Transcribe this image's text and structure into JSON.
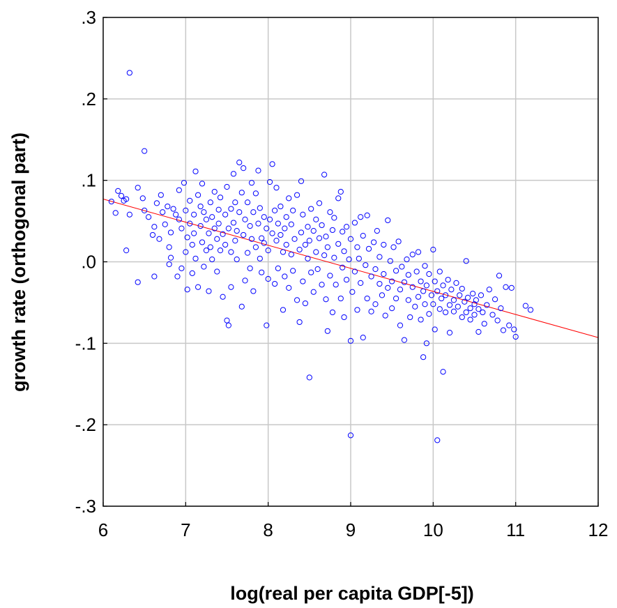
{
  "chart_data": {
    "type": "scatter",
    "xlabel": "log(real per capita GDP[-5])",
    "ylabel": "growth rate (orthogonal part)",
    "xlim": [
      6,
      12
    ],
    "ylim": [
      -0.3,
      0.3
    ],
    "x_ticks": [
      6,
      7,
      8,
      9,
      10,
      11,
      12
    ],
    "x_tick_labels": [
      "6",
      "7",
      "8",
      "9",
      "10",
      "11",
      "12"
    ],
    "y_ticks": [
      0.3,
      0.2,
      0.1,
      0.0,
      -0.1,
      -0.2,
      -0.3
    ],
    "y_tick_labels": [
      ".3",
      ".2",
      ".1",
      ".0",
      "-.1",
      "-.2",
      "-.3"
    ],
    "grid": true,
    "colors": {
      "points": "#0000ff",
      "fit_line": "#ff0000",
      "grid": "#c8c8c8",
      "frame": "#000000"
    },
    "fit_line": {
      "x": [
        6.0,
        12.0
      ],
      "y": [
        0.077,
        -0.093
      ]
    },
    "points": [
      [
        6.1,
        0.074
      ],
      [
        6.15,
        0.06
      ],
      [
        6.18,
        0.087
      ],
      [
        6.22,
        0.081
      ],
      [
        6.25,
        0.075
      ],
      [
        6.28,
        0.077
      ],
      [
        6.28,
        0.014
      ],
      [
        6.32,
        0.232
      ],
      [
        6.32,
        0.058
      ],
      [
        6.42,
        0.091
      ],
      [
        6.42,
        -0.025
      ],
      [
        6.48,
        0.078
      ],
      [
        6.5,
        0.136
      ],
      [
        6.5,
        0.063
      ],
      [
        6.55,
        0.055
      ],
      [
        6.6,
        0.033
      ],
      [
        6.62,
        -0.018
      ],
      [
        6.62,
        0.043
      ],
      [
        6.65,
        0.072
      ],
      [
        6.68,
        0.028
      ],
      [
        6.7,
        0.082
      ],
      [
        6.72,
        0.061
      ],
      [
        6.75,
        0.046
      ],
      [
        6.78,
        0.068
      ],
      [
        6.8,
        -0.003
      ],
      [
        6.8,
        0.018
      ],
      [
        6.82,
        0.036
      ],
      [
        6.82,
        0.005
      ],
      [
        6.85,
        0.065
      ],
      [
        6.88,
        0.058
      ],
      [
        6.9,
        -0.018
      ],
      [
        6.92,
        0.088
      ],
      [
        6.92,
        0.052
      ],
      [
        6.95,
        0.041
      ],
      [
        6.95,
        -0.008
      ],
      [
        6.98,
        0.097
      ],
      [
        7.0,
        0.063
      ],
      [
        7.0,
        0.012
      ],
      [
        7.02,
        -0.034
      ],
      [
        7.02,
        0.03
      ],
      [
        7.05,
        0.075
      ],
      [
        7.05,
        0.047
      ],
      [
        7.08,
        0.021
      ],
      [
        7.08,
        -0.014
      ],
      [
        7.1,
        0.058
      ],
      [
        7.1,
        0.035
      ],
      [
        7.12,
        0.111
      ],
      [
        7.12,
        0.004
      ],
      [
        7.15,
        0.082
      ],
      [
        7.15,
        -0.031
      ],
      [
        7.18,
        0.068
      ],
      [
        7.18,
        0.044
      ],
      [
        7.2,
        0.096
      ],
      [
        7.2,
        0.024
      ],
      [
        7.22,
        -0.006
      ],
      [
        7.22,
        0.061
      ],
      [
        7.25,
        0.052
      ],
      [
        7.25,
        0.014
      ],
      [
        7.28,
        0.035
      ],
      [
        7.28,
        -0.036
      ],
      [
        7.3,
        0.073
      ],
      [
        7.3,
        0.018
      ],
      [
        7.32,
        0.055
      ],
      [
        7.32,
        0.003
      ],
      [
        7.35,
        0.086
      ],
      [
        7.35,
        0.041
      ],
      [
        7.38,
        0.028
      ],
      [
        7.38,
        -0.012
      ],
      [
        7.4,
        0.064
      ],
      [
        7.4,
        0.047
      ],
      [
        7.42,
        0.014
      ],
      [
        7.42,
        0.079
      ],
      [
        7.45,
        0.034
      ],
      [
        7.45,
        -0.043
      ],
      [
        7.48,
        0.058
      ],
      [
        7.48,
        0.021
      ],
      [
        7.5,
        -0.072
      ],
      [
        7.5,
        0.092
      ],
      [
        7.52,
        0.041
      ],
      [
        7.52,
        -0.078
      ],
      [
        7.55,
        0.065
      ],
      [
        7.55,
        0.012
      ],
      [
        7.55,
        -0.031
      ],
      [
        7.58,
        0.108
      ],
      [
        7.58,
        0.048
      ],
      [
        7.6,
        0.026
      ],
      [
        7.6,
        0.073
      ],
      [
        7.62,
        0.003
      ],
      [
        7.62,
        0.038
      ],
      [
        7.65,
        0.122
      ],
      [
        7.65,
        0.061
      ],
      [
        7.68,
        0.085
      ],
      [
        7.68,
        -0.055
      ],
      [
        7.7,
        0.115
      ],
      [
        7.7,
        0.033
      ],
      [
        7.72,
        -0.023
      ],
      [
        7.72,
        0.052
      ],
      [
        7.75,
        0.073
      ],
      [
        7.75,
        0.011
      ],
      [
        7.78,
        0.044
      ],
      [
        7.78,
        -0.008
      ],
      [
        7.8,
        0.097
      ],
      [
        7.8,
        0.028
      ],
      [
        7.82,
        0.061
      ],
      [
        7.82,
        -0.036
      ],
      [
        7.85,
        0.084
      ],
      [
        7.85,
        0.018
      ],
      [
        7.88,
        0.112
      ],
      [
        7.88,
        0.047
      ],
      [
        7.9,
        0.004
      ],
      [
        7.9,
        0.066
      ],
      [
        7.92,
        0.029
      ],
      [
        7.92,
        -0.013
      ],
      [
        7.95,
        0.055
      ],
      [
        7.95,
        0.023
      ],
      [
        7.98,
        -0.078
      ],
      [
        7.98,
        0.041
      ],
      [
        8.0,
        0.014
      ],
      [
        8.0,
        -0.021
      ],
      [
        8.02,
        0.098
      ],
      [
        8.02,
        0.052
      ],
      [
        8.05,
        0.12
      ],
      [
        8.05,
        0.035
      ],
      [
        8.08,
        -0.027
      ],
      [
        8.08,
        0.063
      ],
      [
        8.1,
        0.026
      ],
      [
        8.1,
        0.091
      ],
      [
        8.12,
        -0.008
      ],
      [
        8.12,
        0.047
      ],
      [
        8.15,
        0.033
      ],
      [
        8.15,
        0.068
      ],
      [
        8.18,
        -0.059
      ],
      [
        8.18,
        0.012
      ],
      [
        8.2,
        0.041
      ],
      [
        8.2,
        -0.018
      ],
      [
        8.22,
        0.055
      ],
      [
        8.22,
        0.021
      ],
      [
        8.25,
        0.078
      ],
      [
        8.25,
        -0.032
      ],
      [
        8.28,
        0.009
      ],
      [
        8.28,
        0.046
      ],
      [
        8.3,
        0.063
      ],
      [
        8.3,
        -0.011
      ],
      [
        8.32,
        0.028
      ],
      [
        8.35,
        0.082
      ],
      [
        8.35,
        -0.047
      ],
      [
        8.38,
        0.015
      ],
      [
        8.38,
        -0.074
      ],
      [
        8.4,
        0.099
      ],
      [
        8.4,
        0.036
      ],
      [
        8.42,
        -0.024
      ],
      [
        8.42,
        0.058
      ],
      [
        8.45,
        0.021
      ],
      [
        8.45,
        -0.051
      ],
      [
        8.48,
        0.004
      ],
      [
        8.48,
        0.043
      ],
      [
        8.5,
        -0.142
      ],
      [
        8.5,
        0.026
      ],
      [
        8.52,
        0.065
      ],
      [
        8.52,
        -0.013
      ],
      [
        8.55,
        0.038
      ],
      [
        8.55,
        -0.037
      ],
      [
        8.58,
        0.012
      ],
      [
        8.58,
        0.052
      ],
      [
        8.6,
        -0.009
      ],
      [
        8.62,
        0.072
      ],
      [
        8.62,
        0.029
      ],
      [
        8.65,
        -0.028
      ],
      [
        8.65,
        0.045
      ],
      [
        8.68,
        0.107
      ],
      [
        8.68,
        0.008
      ],
      [
        8.7,
        -0.046
      ],
      [
        8.7,
        0.031
      ],
      [
        8.72,
        0.018
      ],
      [
        8.72,
        -0.085
      ],
      [
        8.75,
        0.061
      ],
      [
        8.75,
        -0.017
      ],
      [
        8.78,
        0.039
      ],
      [
        8.78,
        -0.062
      ],
      [
        8.8,
        0.005
      ],
      [
        8.8,
        0.054
      ],
      [
        8.82,
        -0.028
      ],
      [
        8.85,
        0.078
      ],
      [
        8.85,
        0.022
      ],
      [
        8.88,
        0.086
      ],
      [
        8.88,
        -0.045
      ],
      [
        8.9,
        -0.007
      ],
      [
        8.9,
        0.037
      ],
      [
        8.92,
        0.013
      ],
      [
        8.92,
        -0.068
      ],
      [
        8.95,
        0.043
      ],
      [
        8.95,
        -0.022
      ],
      [
        8.98,
        0.003
      ],
      [
        9.0,
        -0.097
      ],
      [
        9.0,
        -0.213
      ],
      [
        9.0,
        0.028
      ],
      [
        9.02,
        -0.037
      ],
      [
        9.05,
        0.048
      ],
      [
        9.05,
        -0.012
      ],
      [
        9.08,
        0.018
      ],
      [
        9.08,
        -0.059
      ],
      [
        9.1,
        0.004
      ],
      [
        9.12,
        0.055
      ],
      [
        9.12,
        -0.026
      ],
      [
        9.15,
        -0.093
      ],
      [
        9.15,
        0.032
      ],
      [
        9.18,
        -0.004
      ],
      [
        9.2,
        0.057
      ],
      [
        9.2,
        -0.045
      ],
      [
        9.22,
        0.016
      ],
      [
        9.25,
        -0.018
      ],
      [
        9.25,
        -0.061
      ],
      [
        9.28,
        0.024
      ],
      [
        9.3,
        -0.009
      ],
      [
        9.3,
        -0.052
      ],
      [
        9.32,
        0.038
      ],
      [
        9.35,
        -0.027
      ],
      [
        9.35,
        0.006
      ],
      [
        9.38,
        -0.041
      ],
      [
        9.4,
        0.021
      ],
      [
        9.4,
        -0.015
      ],
      [
        9.42,
        -0.066
      ],
      [
        9.45,
        0.051
      ],
      [
        9.45,
        -0.032
      ],
      [
        9.48,
        0.001
      ],
      [
        9.5,
        -0.024
      ],
      [
        9.5,
        -0.057
      ],
      [
        9.52,
        0.018
      ],
      [
        9.55,
        -0.011
      ],
      [
        9.55,
        -0.045
      ],
      [
        9.58,
        0.025
      ],
      [
        9.6,
        -0.034
      ],
      [
        9.6,
        -0.078
      ],
      [
        9.62,
        -0.006
      ],
      [
        9.65,
        -0.025
      ],
      [
        9.65,
        -0.096
      ],
      [
        9.68,
        0.003
      ],
      [
        9.7,
        -0.047
      ],
      [
        9.7,
        -0.016
      ],
      [
        9.72,
        -0.068
      ],
      [
        9.75,
        0.009
      ],
      [
        9.75,
        -0.031
      ],
      [
        9.78,
        -0.055
      ],
      [
        9.8,
        -0.012
      ],
      [
        9.82,
        0.012
      ],
      [
        9.82,
        -0.043
      ],
      [
        9.85,
        -0.071
      ],
      [
        9.85,
        -0.024
      ],
      [
        9.88,
        -0.117
      ],
      [
        9.88,
        -0.036
      ],
      [
        9.9,
        -0.005
      ],
      [
        9.9,
        -0.052
      ],
      [
        9.92,
        -0.1
      ],
      [
        9.92,
        -0.029
      ],
      [
        9.95,
        -0.064
      ],
      [
        9.95,
        -0.015
      ],
      [
        9.98,
        -0.041
      ],
      [
        10.0,
        0.015
      ],
      [
        10.0,
        -0.052
      ],
      [
        10.02,
        -0.024
      ],
      [
        10.02,
        -0.083
      ],
      [
        10.05,
        -0.036
      ],
      [
        10.05,
        -0.219
      ],
      [
        10.08,
        -0.058
      ],
      [
        10.08,
        -0.012
      ],
      [
        10.1,
        -0.045
      ],
      [
        10.12,
        -0.135
      ],
      [
        10.12,
        -0.029
      ],
      [
        10.15,
        -0.062
      ],
      [
        10.15,
        -0.041
      ],
      [
        10.18,
        -0.022
      ],
      [
        10.2,
        -0.053
      ],
      [
        10.2,
        -0.087
      ],
      [
        10.22,
        -0.034
      ],
      [
        10.25,
        -0.047
      ],
      [
        10.25,
        -0.061
      ],
      [
        10.28,
        -0.026
      ],
      [
        10.3,
        -0.055
      ],
      [
        10.32,
        -0.041
      ],
      [
        10.35,
        -0.068
      ],
      [
        10.35,
        -0.033
      ],
      [
        10.38,
        -0.049
      ],
      [
        10.4,
        0.001
      ],
      [
        10.4,
        -0.062
      ],
      [
        10.42,
        -0.044
      ],
      [
        10.45,
        -0.057
      ],
      [
        10.45,
        -0.071
      ],
      [
        10.48,
        -0.039
      ],
      [
        10.5,
        -0.052
      ],
      [
        10.5,
        -0.065
      ],
      [
        10.52,
        -0.047
      ],
      [
        10.55,
        -0.086
      ],
      [
        10.55,
        -0.058
      ],
      [
        10.58,
        -0.041
      ],
      [
        10.6,
        -0.062
      ],
      [
        10.62,
        -0.076
      ],
      [
        10.65,
        -0.053
      ],
      [
        10.68,
        -0.034
      ],
      [
        10.72,
        -0.065
      ],
      [
        10.75,
        -0.046
      ],
      [
        10.78,
        -0.072
      ],
      [
        10.8,
        -0.017
      ],
      [
        10.82,
        -0.057
      ],
      [
        10.85,
        -0.084
      ],
      [
        10.88,
        -0.031
      ],
      [
        10.92,
        -0.078
      ],
      [
        10.95,
        -0.032
      ],
      [
        10.98,
        -0.083
      ],
      [
        11.0,
        -0.092
      ],
      [
        11.12,
        -0.054
      ],
      [
        11.18,
        -0.059
      ]
    ]
  }
}
